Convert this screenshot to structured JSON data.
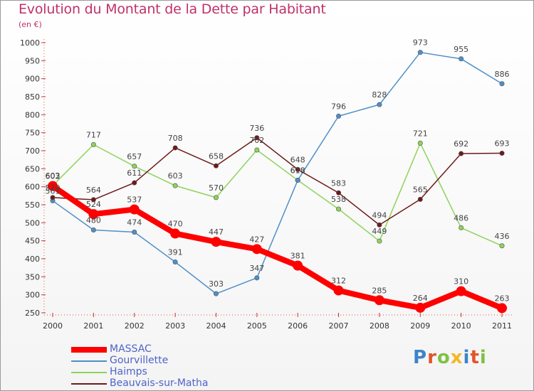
{
  "header": {
    "title": "Evolution du Montant de la Dette par Habitant",
    "subtitle": "(en €)"
  },
  "logo": {
    "text": "Proxiti",
    "colors": [
      "#3d84c9",
      "#e2552a",
      "#7fc144",
      "#f2b824",
      "#3d84c9",
      "#e2552a",
      "#7fc144"
    ]
  },
  "chart_data": {
    "type": "line",
    "title": "Evolution du Montant de la Dette par Habitant",
    "subtitle": "(en €)",
    "x": [
      "2000",
      "2001",
      "2002",
      "2003",
      "2004",
      "2005",
      "2006",
      "2007",
      "2008",
      "2009",
      "2010",
      "2011"
    ],
    "ylim": [
      250,
      1000
    ],
    "yticks": [
      250,
      300,
      350,
      400,
      450,
      500,
      550,
      600,
      650,
      700,
      750,
      800,
      850,
      900,
      950,
      1000
    ],
    "grid": false,
    "legend_position": "bottom-left",
    "series": [
      {
        "name": "MASSAC",
        "color": "#ff0000",
        "values": [
          602,
          524,
          537,
          470,
          447,
          427,
          381,
          312,
          285,
          264,
          310,
          263
        ]
      },
      {
        "name": "Gourvillette",
        "color": "#4f8fc8",
        "values": [
          561,
          480,
          474,
          391,
          303,
          347,
          618,
          796,
          828,
          973,
          955,
          886
        ]
      },
      {
        "name": "Haimps",
        "color": "#8ed35a",
        "values": [
          603,
          717,
          657,
          603,
          570,
          702,
          618,
          538,
          449,
          721,
          486,
          436
        ]
      },
      {
        "name": "Beauvais-sur-Matha",
        "color": "#6e1a1a",
        "values": [
          570,
          564,
          611,
          708,
          658,
          736,
          648,
          583,
          494,
          565,
          692,
          693
        ]
      }
    ]
  }
}
